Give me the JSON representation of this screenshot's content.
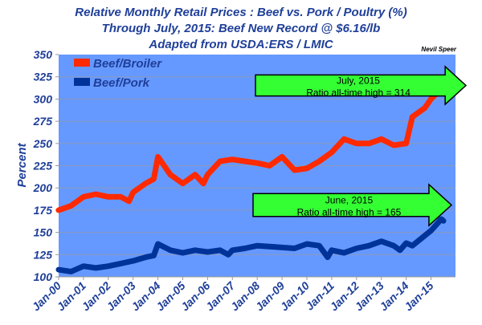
{
  "chart_data": {
    "type": "line",
    "title": [
      "Relative Monthly Retail Prices :  Beef vs. Pork / Poultry (%)",
      "Through July, 2015:  Beef New Record @ $6.16/lb",
      "Adapted from USDA:ERS / LMIC"
    ],
    "author": "Nevil Speer",
    "ylabel": "Percent",
    "xlabel": "",
    "ylim": [
      100,
      350
    ],
    "yticks": [
      100,
      125,
      150,
      175,
      200,
      225,
      250,
      275,
      300,
      325,
      350
    ],
    "xticks": [
      "Jan-00",
      "Jan-01",
      "Jan-02",
      "Jan-03",
      "Jan-04",
      "Jan-05",
      "Jan-06",
      "Jan-07",
      "Jan-08",
      "Jan-09",
      "Jan-10",
      "Jan-11",
      "Jan-12",
      "Jan-13",
      "Jan-14",
      "Jan-15"
    ],
    "grid": true,
    "legend": "top-left",
    "colors": {
      "plot_bg": "#6699ff",
      "beef_broiler": "#ff2a00",
      "beef_pork": "#003399",
      "arrow": "#33ff33",
      "text": "#1f3f99"
    },
    "series": [
      {
        "name": "Beef/Broiler",
        "x": [
          "2000-01",
          "2000-07",
          "2001-01",
          "2001-07",
          "2002-01",
          "2002-07",
          "2002-11",
          "2003-01",
          "2003-07",
          "2003-11",
          "2004-01",
          "2004-07",
          "2005-01",
          "2005-07",
          "2005-11",
          "2006-01",
          "2006-07",
          "2007-01",
          "2007-07",
          "2008-01",
          "2008-07",
          "2009-01",
          "2009-07",
          "2010-01",
          "2010-07",
          "2011-01",
          "2011-07",
          "2012-01",
          "2012-07",
          "2013-01",
          "2013-07",
          "2014-01",
          "2014-04",
          "2014-10",
          "2015-01",
          "2015-07"
        ],
        "values": [
          175,
          180,
          190,
          193,
          190,
          190,
          185,
          195,
          205,
          210,
          235,
          215,
          205,
          215,
          205,
          215,
          230,
          232,
          230,
          228,
          225,
          235,
          220,
          222,
          230,
          240,
          255,
          250,
          250,
          255,
          248,
          250,
          280,
          290,
          300,
          314
        ]
      },
      {
        "name": "Beef/Pork",
        "x": [
          "2000-01",
          "2000-07",
          "2001-01",
          "2001-07",
          "2002-01",
          "2002-07",
          "2003-01",
          "2003-07",
          "2003-11",
          "2004-01",
          "2004-07",
          "2005-01",
          "2005-07",
          "2006-01",
          "2006-07",
          "2006-11",
          "2007-01",
          "2007-07",
          "2008-01",
          "2008-07",
          "2009-01",
          "2009-07",
          "2010-01",
          "2010-07",
          "2010-11",
          "2011-01",
          "2011-07",
          "2012-01",
          "2012-07",
          "2013-01",
          "2013-07",
          "2013-10",
          "2014-01",
          "2014-04",
          "2015-01",
          "2015-06",
          "2015-07"
        ],
        "values": [
          108,
          106,
          112,
          110,
          112,
          115,
          118,
          122,
          124,
          137,
          130,
          127,
          130,
          128,
          130,
          125,
          130,
          132,
          135,
          134,
          133,
          132,
          137,
          135,
          122,
          130,
          127,
          132,
          135,
          140,
          135,
          130,
          138,
          135,
          152,
          165,
          163
        ]
      }
    ],
    "annotations": [
      {
        "line1": "July, 2015",
        "line2": "Ratio all-time high = 314"
      },
      {
        "line1": "June, 2015",
        "line2": "Ratio all-time high = 165"
      }
    ]
  }
}
